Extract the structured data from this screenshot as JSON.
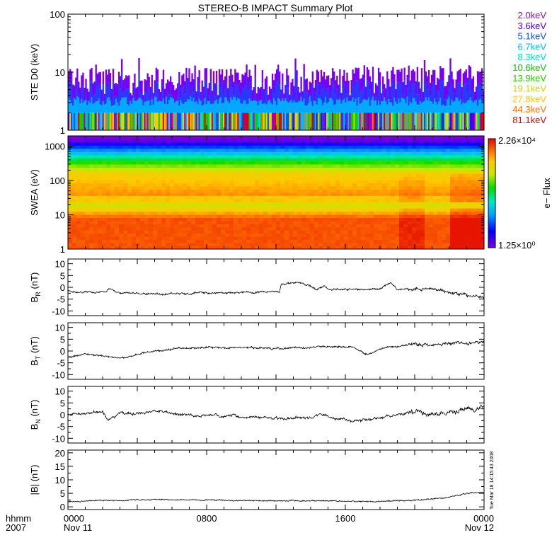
{
  "title": "STEREO-B IMPACT Summary Plot",
  "time_axis": {
    "corner_labels": [
      "hhmm",
      "2007"
    ],
    "ticks": [
      {
        "t": 0,
        "top": "0000",
        "bottom": "Nov 11"
      },
      {
        "t": 8,
        "top": "0800",
        "bottom": ""
      },
      {
        "t": 16,
        "top": "1600",
        "bottom": ""
      },
      {
        "t": 24,
        "top": "0000",
        "bottom": "Nov 12"
      }
    ],
    "range_hours": [
      0,
      24
    ]
  },
  "timestamp": "Tue Mar 18 14:15:43 2008",
  "colors": {
    "energy_channels": [
      "#9a00d8",
      "#4a00e6",
      "#0050ff",
      "#00b8ff",
      "#00e0c0",
      "#00d000",
      "#28c800",
      "#c8d800",
      "#ffc800",
      "#ff7000",
      "#e00000"
    ]
  },
  "chart_data": [
    {
      "type": "bar",
      "panel": "STE D0",
      "ylabel": "STE D0 (keV)",
      "yscale": "log",
      "ylim": [
        1,
        100
      ],
      "yticks": [
        "100",
        "10",
        "1"
      ],
      "legend": [
        "2.0keV",
        "3.6keV",
        "5.1keV",
        "6.7keV",
        "8.3keV",
        "10.6keV",
        "13.9keV",
        "19.1keV",
        "27.8keV",
        "44.3keV",
        "81.1keV"
      ],
      "legend_placement": "right",
      "typical_top_keV": [
        4,
        12
      ],
      "peak_top_keV": 18
    },
    {
      "type": "heatmap",
      "panel": "SWEA",
      "ylabel": "SWEA (eV)",
      "yscale": "log",
      "ylim": [
        1,
        2000
      ],
      "yticks": [
        "1000",
        "100",
        "10",
        "1"
      ],
      "colorbar_label": "e− Flux",
      "colorbar_max": "2.26×10⁴",
      "colorbar_min": "1.25×10⁰",
      "colormap": "rainbow"
    },
    {
      "type": "line",
      "panel": "BR",
      "ylabel_sym": "B",
      "ylabel_sub": "R",
      "ylabel_unit": " (nT)",
      "ylim": [
        -12,
        12
      ],
      "yticks": [
        10,
        5,
        0,
        -5,
        -10
      ],
      "keyframes": [
        [
          0,
          -1.5
        ],
        [
          0.5,
          -2.2
        ],
        [
          2.2,
          -1.8
        ],
        [
          2.4,
          -0.2
        ],
        [
          2.7,
          -1.8
        ],
        [
          3.2,
          -2.5
        ],
        [
          5,
          -2.8
        ],
        [
          7,
          -2.6
        ],
        [
          9,
          -2.3
        ],
        [
          11,
          -2.0
        ],
        [
          12.2,
          -1.6
        ],
        [
          12.3,
          1.5
        ],
        [
          13.5,
          1.8
        ],
        [
          14,
          0.5
        ],
        [
          14.3,
          -1.0
        ],
        [
          14.8,
          1.0
        ],
        [
          15,
          -0.8
        ],
        [
          17,
          -1.0
        ],
        [
          18,
          -0.5
        ],
        [
          18.6,
          2.0
        ],
        [
          19,
          -0.8
        ],
        [
          21,
          -0.8
        ],
        [
          22,
          -2.0
        ],
        [
          23,
          -3.5
        ],
        [
          24,
          -4.0
        ]
      ],
      "noise": 0.55
    },
    {
      "type": "line",
      "panel": "BT",
      "ylabel_sym": "B",
      "ylabel_sub": "T",
      "ylabel_unit": " (nT)",
      "ylim": [
        -12,
        12
      ],
      "yticks": [
        10,
        5,
        0,
        -5,
        -10
      ],
      "keyframes": [
        [
          0,
          -2.5
        ],
        [
          1,
          -1.5
        ],
        [
          2,
          -1.8
        ],
        [
          3,
          -2.8
        ],
        [
          4,
          -1.5
        ],
        [
          5,
          0
        ],
        [
          6.5,
          1.2
        ],
        [
          8,
          1.5
        ],
        [
          10,
          1.3
        ],
        [
          12,
          1.0
        ],
        [
          14,
          1.5
        ],
        [
          15.5,
          2.0
        ],
        [
          16.5,
          1.5
        ],
        [
          17,
          -0.5
        ],
        [
          17.3,
          -1.8
        ],
        [
          17.8,
          0.5
        ],
        [
          19,
          2.3
        ],
        [
          21,
          3.0
        ],
        [
          22.5,
          3.5
        ],
        [
          24,
          3.5
        ]
      ],
      "noise": 0.55
    },
    {
      "type": "line",
      "panel": "BN",
      "ylabel_sym": "B",
      "ylabel_sub": "N",
      "ylabel_unit": " (nT)",
      "ylim": [
        -12,
        12
      ],
      "yticks": [
        10,
        5,
        0,
        -5,
        -10
      ],
      "keyframes": [
        [
          0,
          0
        ],
        [
          1,
          0.5
        ],
        [
          2,
          1.2
        ],
        [
          2.3,
          -2.0
        ],
        [
          2.7,
          -1.0
        ],
        [
          3,
          0.5
        ],
        [
          4.5,
          0.8
        ],
        [
          5,
          1.5
        ],
        [
          6,
          0.5
        ],
        [
          7,
          -0.2
        ],
        [
          8,
          -0.5
        ],
        [
          10,
          -0.8
        ],
        [
          11.5,
          -1.0
        ],
        [
          12,
          -1.5
        ],
        [
          14,
          -1.5
        ],
        [
          14.5,
          0.5
        ],
        [
          15,
          -1.2
        ],
        [
          16,
          -2.0
        ],
        [
          17,
          -2.5
        ],
        [
          18,
          -1.5
        ],
        [
          19,
          0.2
        ],
        [
          20,
          1.0
        ],
        [
          21,
          0.5
        ],
        [
          22.5,
          1.5
        ],
        [
          23.5,
          2.5
        ],
        [
          24,
          3.5
        ]
      ],
      "noise": 0.8
    },
    {
      "type": "line",
      "panel": "B",
      "ylabel_sym": "|B|",
      "ylabel_sub": "",
      "ylabel_unit": " (nT)",
      "ylim": [
        -1,
        21
      ],
      "yticks": [
        20,
        15,
        10,
        5,
        0
      ],
      "keyframes": [
        [
          0,
          2.0
        ],
        [
          3,
          2.5
        ],
        [
          5,
          2.7
        ],
        [
          8,
          2.5
        ],
        [
          12,
          2.3
        ],
        [
          16,
          2.1
        ],
        [
          18,
          2.0
        ],
        [
          20,
          2.5
        ],
        [
          22,
          3.5
        ],
        [
          23,
          4.8
        ],
        [
          24,
          5.5
        ]
      ],
      "noise": 0.3
    }
  ]
}
